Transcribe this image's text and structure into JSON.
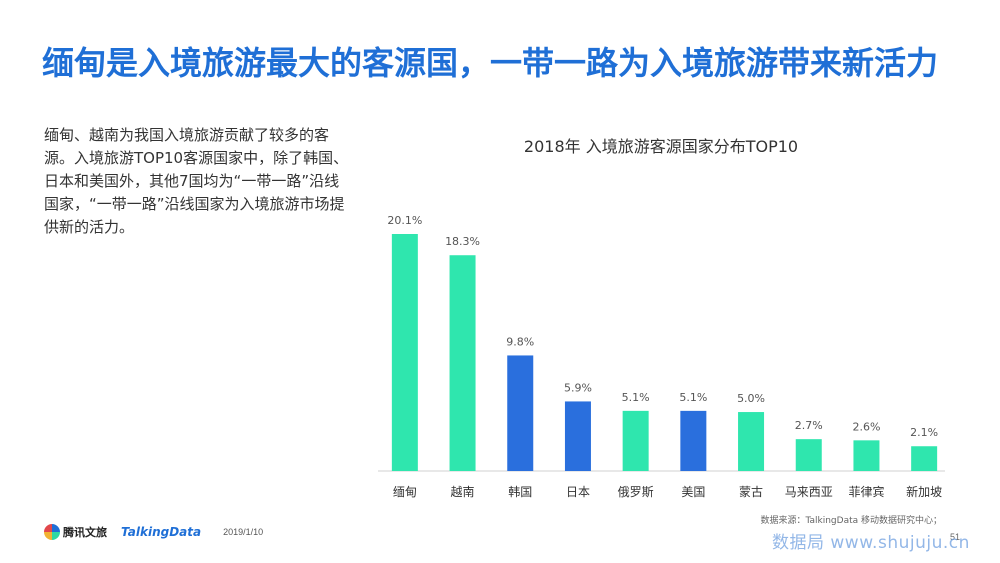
{
  "headline": "缅甸是入境旅游最大的客源国，一带一路为入境旅游带来新活力",
  "body_text": "缅甸、越南为我国入境旅游贡献了较多的客源。入境旅游TOP10客源国家中，除了韩国、日本和美国外，其他7国均为“一带一路”沿线国家，“一带一路”沿线国家为入境旅游市场提供新的活力。",
  "footer": {
    "logo_tx": "腾讯文旅",
    "logo_td": "TalkingData",
    "date": "2019/1/10",
    "source": "数据来源：TalkingData 移动数据研究中心；",
    "page_number": "51",
    "watermark": "数据局 www.shujuju.cn"
  },
  "colors": {
    "teal": "#2fe6ae",
    "blue": "#2a6fdd",
    "headline": "#1f6fd6"
  },
  "chart_data": {
    "type": "bar",
    "title": "2018年 入境旅游客源国家分布TOP10",
    "categories": [
      "缅甸",
      "越南",
      "韩国",
      "日本",
      "俄罗斯",
      "美国",
      "蒙古",
      "马来西亚",
      "菲律宾",
      "新加坡"
    ],
    "values": [
      20.1,
      18.3,
      9.8,
      5.9,
      5.1,
      5.1,
      5.0,
      2.7,
      2.6,
      2.1
    ],
    "value_labels": [
      "20.1%",
      "18.3%",
      "9.8%",
      "5.9%",
      "5.1%",
      "5.1%",
      "5.0%",
      "2.7%",
      "2.6%",
      "2.1%"
    ],
    "bar_colors": [
      "teal",
      "teal",
      "blue",
      "blue",
      "teal",
      "blue",
      "teal",
      "teal",
      "teal",
      "teal"
    ],
    "ylim": [
      0,
      20.1
    ],
    "grid": false,
    "xlabel": "",
    "ylabel": ""
  }
}
